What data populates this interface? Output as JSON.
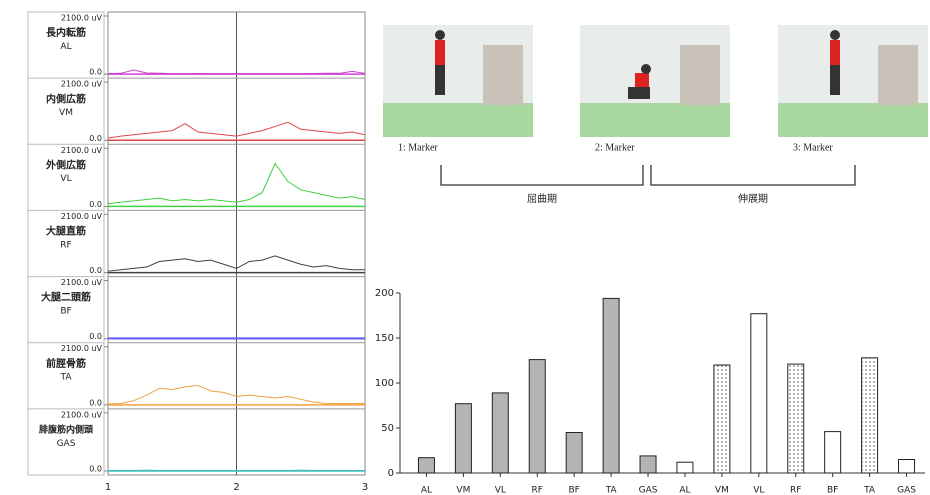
{
  "chart_data": [
    {
      "type": "line",
      "x": [
        1.0,
        1.1,
        1.2,
        1.3,
        1.4,
        1.5,
        1.6,
        1.7,
        1.8,
        1.9,
        2.0,
        2.1,
        2.2,
        2.3,
        2.4,
        2.5,
        2.6,
        2.7,
        2.8,
        2.9,
        3.0
      ],
      "xlim": [
        1,
        3
      ],
      "xticks": [
        1,
        2,
        3
      ],
      "grid": true,
      "ylim": [
        0,
        2100
      ],
      "yticks": [
        {
          "value": 0,
          "label": "0.0"
        },
        {
          "value": 2100,
          "label": "2100.0 uV"
        }
      ],
      "series": [
        {
          "name": "長内転筋",
          "label": "AL",
          "color": "#d040d0",
          "values": [
            20,
            30,
            150,
            40,
            30,
            20,
            20,
            25,
            20,
            20,
            20,
            20,
            20,
            20,
            20,
            20,
            25,
            30,
            30,
            100,
            30
          ]
        },
        {
          "name": "内側広筋",
          "label": "VM",
          "color": "#e04848",
          "values": [
            80,
            150,
            200,
            250,
            300,
            350,
            600,
            300,
            250,
            200,
            150,
            250,
            350,
            500,
            650,
            400,
            350,
            300,
            250,
            300,
            200
          ]
        },
        {
          "name": "外側広筋",
          "label": "VL",
          "color": "#40d040",
          "values": [
            100,
            150,
            200,
            250,
            300,
            200,
            250,
            200,
            250,
            200,
            150,
            250,
            500,
            1550,
            900,
            600,
            500,
            400,
            300,
            350,
            250
          ]
        },
        {
          "name": "大腿直筋",
          "label": "RF",
          "color": "#404040",
          "values": [
            50,
            100,
            150,
            200,
            400,
            450,
            500,
            400,
            450,
            300,
            150,
            400,
            450,
            600,
            450,
            300,
            200,
            250,
            150,
            100,
            100
          ]
        },
        {
          "name": "大腿二頭筋",
          "label": "BF",
          "color": "#6060f0",
          "values": [
            30,
            30,
            30,
            30,
            30,
            30,
            30,
            30,
            30,
            30,
            30,
            30,
            30,
            30,
            30,
            30,
            30,
            30,
            30,
            30,
            30
          ]
        },
        {
          "name": "前脛骨筋",
          "label": "TA",
          "color": "#f0a040",
          "values": [
            30,
            50,
            150,
            350,
            600,
            550,
            650,
            700,
            500,
            450,
            300,
            350,
            300,
            250,
            300,
            200,
            100,
            50,
            50,
            50,
            50
          ]
        },
        {
          "name": "腓腹筋内側頭",
          "label": "GAS",
          "color": "#40c0c0",
          "values": [
            20,
            20,
            20,
            30,
            20,
            20,
            20,
            20,
            20,
            20,
            20,
            20,
            20,
            20,
            20,
            30,
            20,
            20,
            20,
            20,
            20
          ]
        }
      ]
    },
    {
      "type": "bar",
      "categories": [
        "AL",
        "VM",
        "VL",
        "RF",
        "BF",
        "TA",
        "GAS",
        "AL",
        "VM",
        "VL",
        "RF",
        "BF",
        "TA",
        "GAS"
      ],
      "values": [
        17,
        77,
        89,
        126,
        45,
        194,
        19,
        12,
        120,
        177,
        121,
        46,
        128,
        15
      ],
      "bar_fills": [
        "gray",
        "gray",
        "gray",
        "gray",
        "gray",
        "gray",
        "gray",
        "white",
        "dotted",
        "white",
        "dotted",
        "white",
        "dotted",
        "white"
      ],
      "ylim": [
        0,
        200
      ],
      "yticks": [
        0,
        50,
        100,
        150,
        200
      ]
    }
  ],
  "photos": {
    "captions": [
      "1: Marker",
      "2: Marker",
      "3: Marker"
    ],
    "phases": [
      "屈曲期",
      "伸展期"
    ]
  }
}
